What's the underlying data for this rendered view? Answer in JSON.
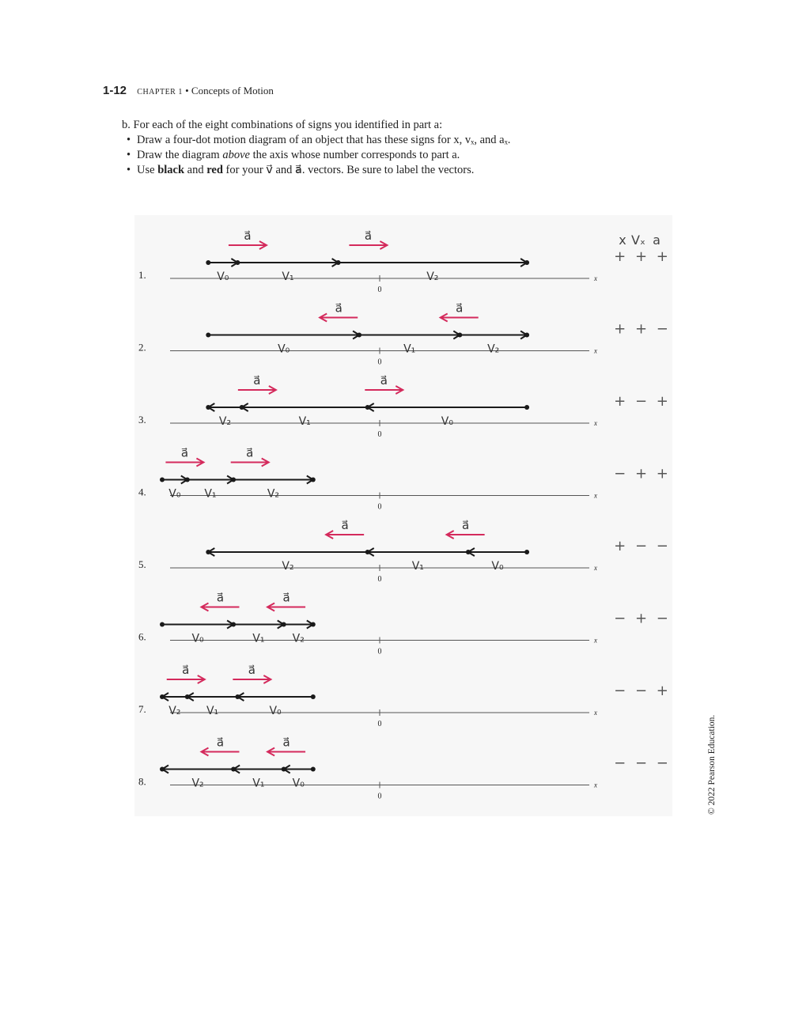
{
  "header": {
    "page_number": "1-12",
    "chapter": "CHAPTER 1",
    "separator": "•",
    "title": "Concepts of Motion"
  },
  "instructions": {
    "intro": "b. For each of the eight combinations of signs you identified in part a:",
    "bullet1": "Draw a four-dot motion diagram of an object that has these signs for x, vₓ, and aₓ.",
    "bullet2_pre": "Draw the diagram ",
    "bullet2_em": "above",
    "bullet2_post": " the axis whose number corresponds to part a.",
    "bullet3_pre": "Use ",
    "bullet3_black": "black",
    "bullet3_mid": " and ",
    "bullet3_red": "red",
    "bullet3_post": " for your v⃗ and a⃗. vectors. Be sure to label the vectors."
  },
  "column_headers": [
    "x",
    "Vₓ",
    "a"
  ],
  "diagrams": [
    {
      "label": "1.",
      "signs": "+ + +",
      "origin_label": "0",
      "axis_label": "x",
      "dots": [
        0.11,
        0.18,
        0.42,
        0.87
      ],
      "accel_dir": "right",
      "accel_label": "a⃗",
      "velocity_labels": [
        "V₀",
        "V₁",
        "V₂"
      ]
    },
    {
      "label": "2.",
      "signs": "+ + −",
      "origin_label": "0",
      "axis_label": "x",
      "dots": [
        0.11,
        0.47,
        0.71,
        0.87
      ],
      "accel_dir": "left",
      "accel_label": "a⃗",
      "velocity_labels": [
        "V₀",
        "V₁",
        "V₂"
      ]
    },
    {
      "label": "3.",
      "signs": "+ − +",
      "origin_label": "0",
      "axis_label": "x",
      "dots": [
        0.11,
        0.19,
        0.49,
        0.87
      ],
      "accel_dir": "right",
      "accel_label": "a⃗",
      "velocity_labels": [
        "V₂",
        "V₁",
        "V₀"
      ]
    },
    {
      "label": "4.",
      "signs": "− + +",
      "origin_label": "0",
      "axis_label": "x",
      "dots": [
        0.0,
        0.06,
        0.17,
        0.36
      ],
      "accel_dir": "right",
      "accel_label": "a⃗",
      "velocity_labels": [
        "V₀",
        "V₁",
        "V₂"
      ]
    },
    {
      "label": "5.",
      "signs": "+ − −",
      "origin_label": "0",
      "axis_label": "x",
      "dots": [
        0.11,
        0.49,
        0.73,
        0.87
      ],
      "accel_dir": "left",
      "accel_label": "a⃗",
      "velocity_labels": [
        "V₂",
        "V₁",
        "V₀"
      ]
    },
    {
      "label": "6.",
      "signs": "− + −",
      "origin_label": "0",
      "axis_label": "x",
      "dots": [
        0.0,
        0.17,
        0.29,
        0.36
      ],
      "accel_dir": "left",
      "accel_label": "a⃗",
      "velocity_labels": [
        "V₀",
        "V₁",
        "V₂"
      ]
    },
    {
      "label": "7.",
      "signs": "− − +",
      "origin_label": "0",
      "axis_label": "x",
      "dots": [
        0.0,
        0.06,
        0.18,
        0.36
      ],
      "accel_dir": "right",
      "accel_label": "a⃗",
      "velocity_labels": [
        "V₂",
        "V₁",
        "V₀"
      ]
    },
    {
      "label": "8.",
      "signs": "− − −",
      "origin_label": "0",
      "axis_label": "x",
      "dots": [
        0.0,
        0.17,
        0.29,
        0.36
      ],
      "accel_dir": "left",
      "accel_label": "a⃗",
      "velocity_labels": [
        "V₂",
        "V₁",
        "V₀"
      ]
    }
  ],
  "copyright": "© 2022 Pearson Education.",
  "colors": {
    "accel": "#d42a5c",
    "velocity": "#1a1a1a",
    "axis": "#555555",
    "text": "#222222"
  }
}
